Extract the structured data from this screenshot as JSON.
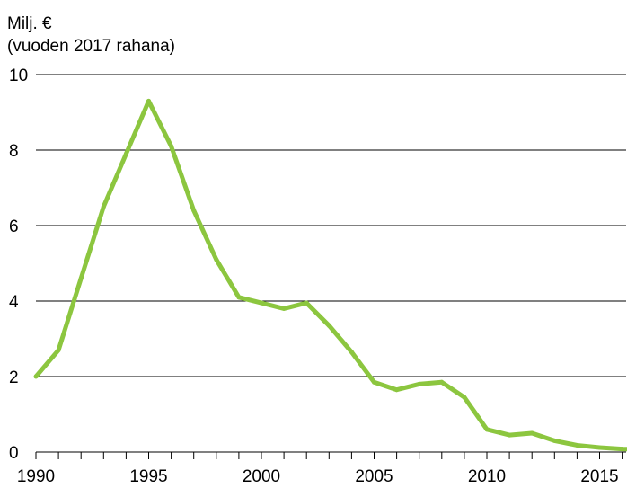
{
  "chart_data": {
    "type": "line",
    "title": "",
    "xlabel": "",
    "ylabel": [
      "Milj. €",
      "(vuoden 2017 rahana)"
    ],
    "ylim": [
      0,
      10
    ],
    "xlim": [
      1990,
      2017
    ],
    "y_ticks": [
      0,
      2,
      4,
      6,
      8,
      10
    ],
    "x_tick_labels": [
      1990,
      1995,
      2000,
      2005,
      2010,
      2015
    ],
    "grid": "horizontal",
    "colors": {
      "line": "#8cc63f",
      "grid": "#000000",
      "text": "#000000"
    },
    "series": [
      {
        "x": [
          1990,
          1991,
          1992,
          1993,
          1994,
          1995,
          1996,
          1997,
          1998,
          1999,
          2000,
          2001,
          2002,
          2003,
          2004,
          2005,
          2006,
          2007,
          2008,
          2009,
          2010,
          2011,
          2012,
          2013,
          2014,
          2015,
          2016,
          2017
        ],
        "values": [
          2.0,
          2.7,
          4.6,
          6.5,
          7.9,
          9.3,
          8.1,
          6.4,
          5.1,
          4.1,
          3.95,
          3.8,
          3.95,
          3.35,
          2.65,
          1.85,
          1.65,
          1.8,
          1.85,
          1.45,
          0.6,
          0.45,
          0.5,
          0.3,
          0.18,
          0.12,
          0.08,
          0.07
        ]
      }
    ]
  }
}
